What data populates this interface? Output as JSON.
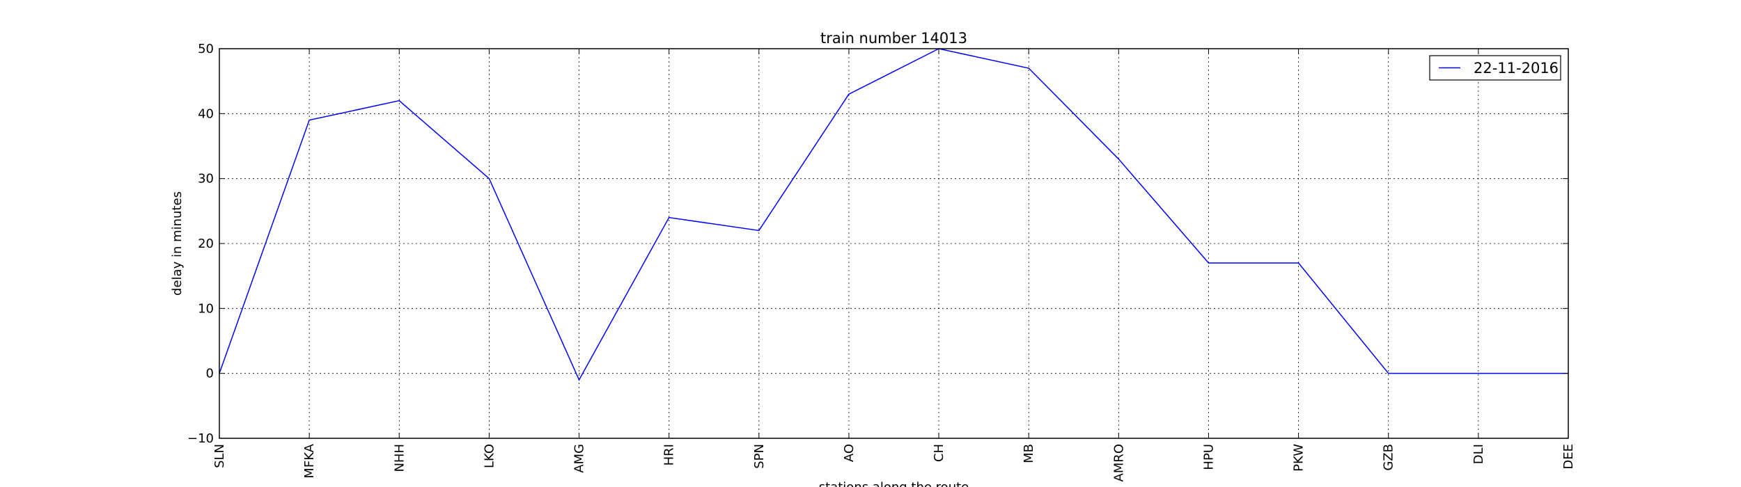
{
  "chart_data": {
    "type": "line",
    "title": "train number 14013",
    "xlabel": "stations along the route",
    "ylabel": "delay in minutes",
    "categories": [
      "SLN",
      "MFKA",
      "NHH",
      "LKO",
      "AMG",
      "HRI",
      "SPN",
      "AO",
      "CH",
      "MB",
      "AMRO",
      "HPU",
      "PKW",
      "GZB",
      "DLI",
      "DEE"
    ],
    "series": [
      {
        "name": "22-11-2016",
        "color": "#0000ff",
        "values": [
          0,
          39,
          42,
          30,
          -1,
          24,
          22,
          43,
          50,
          47,
          33,
          17,
          17,
          0,
          0,
          0
        ]
      }
    ],
    "ylim": [
      -10,
      50
    ],
    "yticks": [
      -10,
      0,
      10,
      20,
      30,
      40,
      50
    ],
    "grid": true,
    "legend_position": "top-right"
  }
}
